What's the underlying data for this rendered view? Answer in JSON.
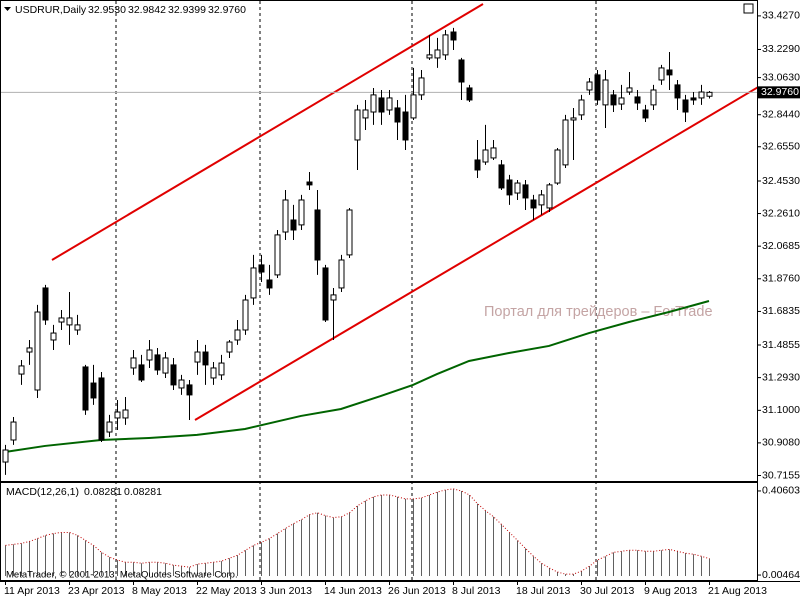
{
  "chart_data": [
    {
      "type": "candlestick",
      "symbol": "USDRUR,Daily",
      "ohlc_labels": [
        "32.9530",
        "32.9842",
        "32.9399",
        "32.9760"
      ],
      "watermark": "Портал для трейдеров – ForTrade",
      "color": "#000000",
      "categories": [
        "11 Apr 2013",
        null,
        null,
        null,
        null,
        null,
        null,
        null,
        "23 Apr 2013",
        null,
        null,
        null,
        null,
        null,
        null,
        null,
        "8 May 2013",
        null,
        null,
        null,
        null,
        null,
        null,
        null,
        "22 May 2013",
        null,
        null,
        null,
        null,
        null,
        null,
        null,
        "3 Jun 2013",
        null,
        null,
        null,
        null,
        null,
        null,
        null,
        "14 Jun 2013",
        null,
        null,
        null,
        null,
        null,
        null,
        null,
        "26 Jun 2013",
        null,
        null,
        null,
        null,
        null,
        null,
        null,
        "8 Jul 2013",
        null,
        null,
        null,
        null,
        null,
        null,
        null,
        "18 Jul 2013",
        null,
        null,
        null,
        null,
        null,
        null,
        null,
        "30 Jul 2013",
        null,
        null,
        null,
        null,
        null,
        null,
        null,
        "9 Aug 2013",
        null,
        null,
        null,
        null,
        null,
        null,
        null,
        "21 Aug 2013"
      ],
      "open": [
        30.795,
        30.925,
        31.314,
        31.444,
        31.22,
        31.822,
        31.515,
        31.621,
        31.604,
        31.574,
        31.356,
        31.261,
        31.291,
        30.972,
        31.055,
        31.055,
        31.35,
        31.368,
        31.397,
        31.427,
        31.32,
        31.368,
        31.232,
        31.25,
        31.385,
        31.444,
        31.291,
        31.309,
        31.444,
        31.515,
        31.574,
        31.763,
        31.958,
        31.869,
        31.899,
        32.152,
        32.223,
        32.194,
        32.447,
        32.282,
        31.94,
        31.751,
        31.822,
        32.017,
        32.695,
        32.825,
        32.86,
        32.943,
        32.872,
        32.884,
        32.86,
        32.825,
        32.961,
        33.179,
        33.179,
        33.197,
        33.332,
        33.167,
        33.002,
        32.577,
        32.565,
        32.589,
        32.548,
        32.459,
        32.382,
        32.43,
        32.341,
        32.312,
        32.294,
        32.441,
        32.548,
        32.813,
        32.843,
        32.99,
        33.079,
        32.902,
        32.961,
        32.907,
        32.978,
        32.949,
        32.872,
        32.902,
        33.049,
        33.108,
        33.02,
        32.931,
        32.943,
        32.943,
        32.953
      ],
      "high": [
        30.896,
        31.061,
        31.397,
        31.515,
        31.722,
        31.84,
        31.604,
        31.692,
        31.798,
        31.663,
        31.368,
        31.368,
        31.326,
        31.073,
        31.161,
        31.179,
        31.456,
        31.427,
        31.515,
        31.468,
        31.444,
        31.409,
        31.309,
        31.279,
        31.515,
        31.486,
        31.385,
        31.427,
        31.515,
        31.633,
        31.781,
        32.017,
        32.017,
        31.958,
        32.164,
        32.4,
        32.312,
        32.371,
        32.506,
        32.4,
        31.958,
        31.822,
        32.017,
        32.294,
        32.902,
        32.931,
        33.002,
        32.99,
        32.99,
        32.931,
        32.961,
        33.12,
        33.108,
        33.315,
        33.297,
        33.344,
        33.356,
        33.179,
        33.02,
        32.695,
        32.784,
        32.695,
        32.577,
        32.489,
        32.459,
        32.459,
        32.371,
        32.4,
        32.441,
        32.648,
        32.843,
        32.884,
        32.961,
        33.061,
        33.108,
        33.108,
        32.99,
        33.02,
        33.096,
        32.99,
        32.902,
        33.02,
        33.138,
        33.214,
        33.049,
        32.961,
        32.978,
        33.02,
        32.9842
      ],
      "low": [
        30.719,
        30.896,
        31.25,
        31.368,
        31.173,
        31.604,
        31.456,
        31.574,
        31.486,
        31.545,
        31.073,
        31.132,
        30.913,
        30.943,
        30.984,
        31.014,
        31.309,
        31.267,
        31.35,
        31.309,
        31.291,
        31.22,
        31.191,
        31.043,
        31.309,
        31.25,
        31.25,
        31.279,
        31.409,
        31.486,
        31.545,
        31.722,
        31.857,
        31.781,
        31.881,
        32.105,
        32.105,
        32.164,
        32.4,
        31.899,
        31.621,
        31.515,
        31.798,
        31.999,
        32.518,
        32.754,
        32.784,
        32.784,
        32.843,
        32.695,
        32.636,
        32.813,
        32.931,
        33.167,
        33.12,
        33.167,
        33.226,
        32.931,
        32.919,
        32.471,
        32.548,
        32.577,
        32.4,
        32.312,
        32.341,
        32.282,
        32.223,
        32.253,
        32.27,
        32.43,
        32.53,
        32.577,
        32.813,
        32.961,
        32.902,
        32.766,
        32.86,
        32.872,
        32.961,
        32.872,
        32.801,
        32.872,
        33.02,
        32.99,
        32.872,
        32.801,
        32.902,
        32.902,
        32.9399
      ],
      "close": [
        30.866,
        31.031,
        31.362,
        31.468,
        31.68,
        31.633,
        31.556,
        31.645,
        31.645,
        31.604,
        31.102,
        31.173,
        30.925,
        31.031,
        31.09,
        31.102,
        31.409,
        31.279,
        31.456,
        31.338,
        31.409,
        31.25,
        31.279,
        31.191,
        31.444,
        31.368,
        31.35,
        31.379,
        31.503,
        31.574,
        31.751,
        31.94,
        31.916,
        31.822,
        32.135,
        32.341,
        32.164,
        32.341,
        32.43,
        31.987,
        31.633,
        31.781,
        31.987,
        32.282,
        32.872,
        32.872,
        32.961,
        32.86,
        32.943,
        32.801,
        32.695,
        32.961,
        33.061,
        33.197,
        33.226,
        33.315,
        33.285,
        33.037,
        32.931,
        32.518,
        32.636,
        32.648,
        32.412,
        32.371,
        32.441,
        32.353,
        32.294,
        32.371,
        32.43,
        32.636,
        32.813,
        32.825,
        32.931,
        33.037,
        32.931,
        33.049,
        32.902,
        32.943,
        33.002,
        32.913,
        32.825,
        32.99,
        33.12,
        33.079,
        32.943,
        32.86,
        32.931,
        32.978,
        32.976
      ],
      "ma": {
        "color": "#006400",
        "x": [
          0,
          5,
          12,
          18,
          24,
          30,
          37,
          42,
          47,
          51,
          54,
          58,
          63,
          68,
          73,
          78,
          83,
          88
        ],
        "values": [
          30.854,
          30.89,
          30.925,
          30.937,
          30.955,
          30.99,
          31.067,
          31.108,
          31.185,
          31.25,
          31.314,
          31.391,
          31.438,
          31.48,
          31.556,
          31.621,
          31.68,
          31.745
        ]
      },
      "bid_label": {
        "value": 32.976,
        "label": "32.9760"
      },
      "ylim": [
        30.689,
        33.509
      ],
      "yticks": [
        {
          "value": 33.427,
          "label": "33.4270"
        },
        {
          "value": 33.229,
          "label": "33.2290"
        },
        {
          "value": 33.063,
          "label": "33.0630"
        },
        {
          "value": 32.844,
          "label": "32.8440"
        },
        {
          "value": 32.655,
          "label": "32.6550"
        },
        {
          "value": 32.453,
          "label": "32.4530"
        },
        {
          "value": 32.261,
          "label": "32.2610"
        },
        32.0685,
        {
          "value": 31.876,
          "label": "31.8760"
        },
        31.6835,
        31.4855,
        {
          "value": 31.293,
          "label": "31.2930"
        },
        {
          "value": 31.1,
          "label": "31.1000"
        },
        {
          "value": 30.908,
          "label": "30.9080"
        },
        30.7155
      ]
    },
    {
      "type": "macd",
      "title": "MACD(12,26,1)",
      "indicator_labels": [
        "0.08281",
        "0.08281"
      ],
      "copyright": "MetaTrader, © 2001-2013, MetaQuotes Software Corp.",
      "color": "#606060",
      "signal_color": "#c00000",
      "values": [
        0.146,
        0.151,
        0.156,
        0.165,
        0.179,
        0.194,
        0.203,
        0.208,
        0.208,
        0.194,
        0.17,
        0.146,
        0.113,
        0.09,
        0.076,
        0.066,
        0.066,
        0.061,
        0.066,
        0.066,
        0.061,
        0.052,
        0.047,
        0.042,
        0.057,
        0.061,
        0.066,
        0.071,
        0.085,
        0.099,
        0.123,
        0.146,
        0.161,
        0.179,
        0.203,
        0.227,
        0.25,
        0.269,
        0.293,
        0.302,
        0.288,
        0.279,
        0.283,
        0.302,
        0.335,
        0.359,
        0.378,
        0.387,
        0.387,
        0.378,
        0.368,
        0.368,
        0.373,
        0.387,
        0.401,
        0.411,
        0.416,
        0.406,
        0.387,
        0.345,
        0.312,
        0.283,
        0.246,
        0.208,
        0.17,
        0.132,
        0.094,
        0.061,
        0.038,
        0.019,
        0.009,
        0.009,
        0.024,
        0.047,
        0.076,
        0.094,
        0.113,
        0.118,
        0.123,
        0.123,
        0.118,
        0.118,
        0.123,
        0.127,
        0.118,
        0.109,
        0.104,
        0.094,
        0.08281
      ],
      "ylim": [
        -0.019,
        0.444
      ],
      "yticks": [
        0.40603,
        0.00464
      ]
    }
  ]
}
